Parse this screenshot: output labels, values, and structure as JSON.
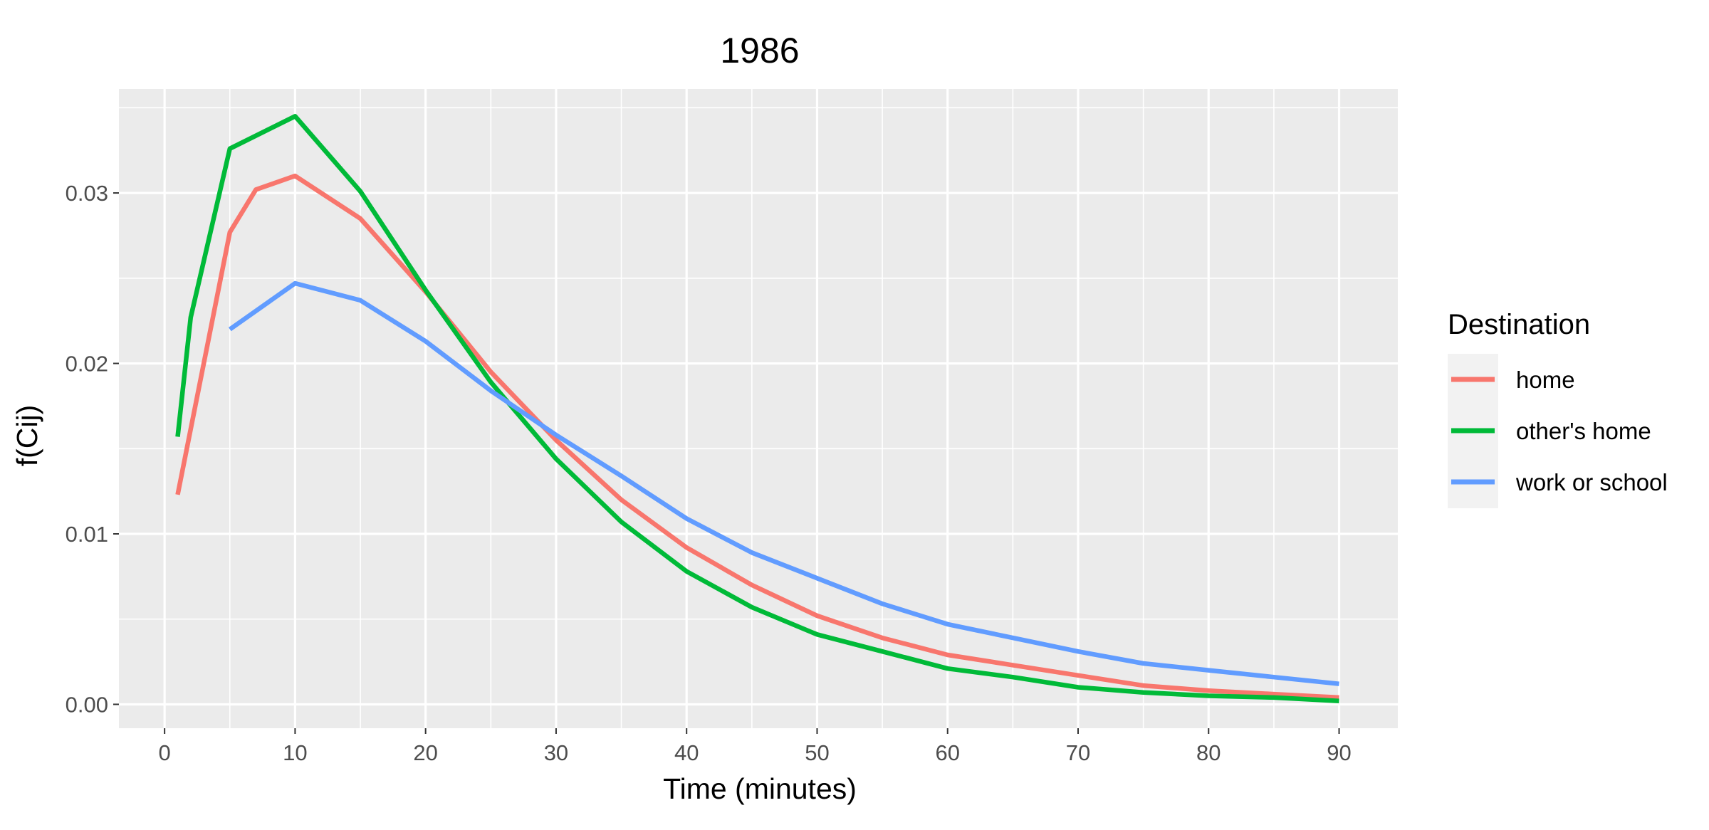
{
  "chart_data": {
    "type": "line",
    "title": "1986",
    "xlabel": "Time (minutes)",
    "ylabel": "f(Cij)",
    "xlim": [
      -3.5,
      94.5
    ],
    "ylim": [
      -0.0014,
      0.0361
    ],
    "x_ticks": [
      0,
      10,
      20,
      30,
      40,
      50,
      60,
      70,
      80,
      90
    ],
    "x_tick_labels": [
      "0",
      "10",
      "20",
      "30",
      "40",
      "50",
      "60",
      "70",
      "80",
      "90"
    ],
    "y_ticks": [
      0.0,
      0.01,
      0.02,
      0.03
    ],
    "y_tick_labels": [
      "0.00",
      "0.01",
      "0.02",
      "0.03"
    ],
    "grid": true,
    "legend": {
      "title": "Destination",
      "position": "right"
    },
    "series": [
      {
        "name": "home",
        "color": "#F8766D",
        "x": [
          1,
          5,
          7,
          10,
          15,
          20,
          25,
          30,
          35,
          40,
          45,
          50,
          55,
          60,
          65,
          70,
          75,
          80,
          85,
          90
        ],
        "y": [
          0.0123,
          0.0277,
          0.0302,
          0.031,
          0.0285,
          0.0242,
          0.0195,
          0.0155,
          0.012,
          0.0092,
          0.007,
          0.0052,
          0.0039,
          0.0029,
          0.0023,
          0.0017,
          0.0011,
          0.0008,
          0.0006,
          0.0004
        ]
      },
      {
        "name": "other's home",
        "color": "#00BA38",
        "x": [
          1,
          2,
          5,
          10,
          15,
          20,
          25,
          30,
          35,
          40,
          45,
          50,
          55,
          60,
          65,
          70,
          75,
          80,
          85,
          90
        ],
        "y": [
          0.0157,
          0.0227,
          0.0326,
          0.0345,
          0.0301,
          0.0243,
          0.0189,
          0.0144,
          0.0107,
          0.0078,
          0.0057,
          0.0041,
          0.0031,
          0.0021,
          0.0016,
          0.001,
          0.0007,
          0.0005,
          0.0004,
          0.0002
        ]
      },
      {
        "name": "work or school",
        "color": "#619CFF",
        "x": [
          5,
          10,
          15,
          20,
          25,
          30,
          35,
          40,
          45,
          50,
          55,
          60,
          65,
          70,
          75,
          80,
          85,
          90
        ],
        "y": [
          0.022,
          0.0247,
          0.0237,
          0.0213,
          0.0184,
          0.0158,
          0.0134,
          0.0109,
          0.0089,
          0.0074,
          0.0059,
          0.0047,
          0.0039,
          0.0031,
          0.0024,
          0.002,
          0.0016,
          0.0012
        ]
      }
    ]
  }
}
